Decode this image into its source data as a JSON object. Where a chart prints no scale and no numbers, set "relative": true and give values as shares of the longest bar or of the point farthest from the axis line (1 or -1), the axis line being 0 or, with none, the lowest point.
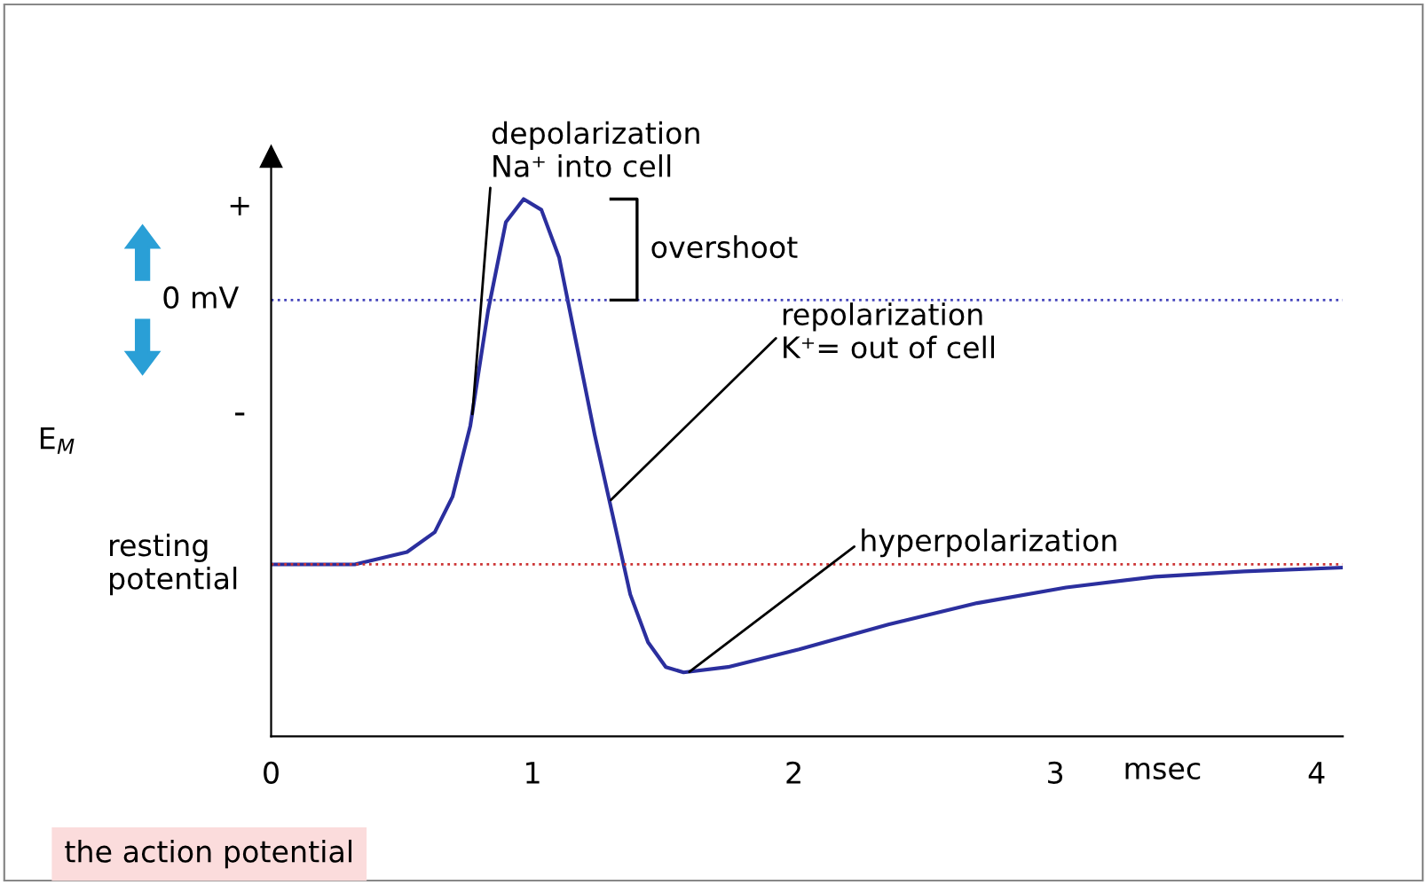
{
  "chart_data": {
    "type": "line",
    "relative": true,
    "xlabel": "msec",
    "x": [
      0,
      0.32,
      0.52,
      0.626,
      0.694,
      0.762,
      0.83,
      0.898,
      0.966,
      1.034,
      1.102,
      1.17,
      1.238,
      1.306,
      1.374,
      1.442,
      1.51,
      1.578,
      1.748,
      2.02,
      2.361,
      2.701,
      3.041,
      3.381,
      3.721,
      4.095
    ],
    "series": [
      {
        "color": "#2b2f9e",
        "values": [
          0.32,
          0.32,
          0.343,
          0.38,
          0.446,
          0.578,
          0.792,
          0.957,
          1.0,
          0.98,
          0.891,
          0.726,
          0.561,
          0.413,
          0.264,
          0.175,
          0.129,
          0.119,
          0.129,
          0.162,
          0.208,
          0.248,
          0.277,
          0.297,
          0.307,
          0.314
        ]
      }
    ],
    "xlim": [
      0,
      4.1
    ],
    "xticks": [
      0,
      1,
      2,
      3,
      4
    ],
    "ref_lines": [
      {
        "axis": "y",
        "value": 0.812,
        "label": "0 mV",
        "color": "#4444bb",
        "line_style": "dotted"
      },
      {
        "axis": "y",
        "value": 0.32,
        "label": "resting\npotential",
        "color": "#cc3333",
        "line_style": "dotted"
      }
    ],
    "annotations": [
      {
        "text": "depolarization\nNa⁺ into cell",
        "x": 0.77,
        "y": 0.6
      },
      "overshoot",
      {
        "text": "repolarization\nK⁺= out of cell",
        "x": 1.3,
        "y": 0.44
      },
      {
        "text": "hyperpolarization",
        "x": 1.6,
        "y": 0.12
      },
      "+",
      "-",
      "the action potential",
      "E$_{M}$"
    ],
    "grid": false,
    "marker": "none",
    "line_style": "solid"
  }
}
